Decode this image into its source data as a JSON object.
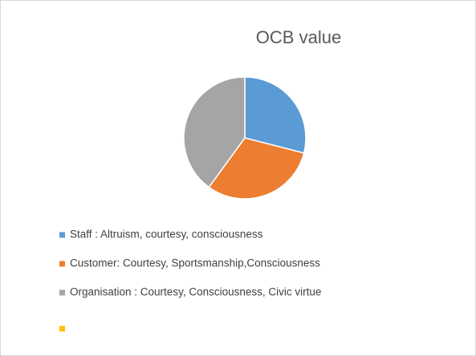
{
  "chart_data": {
    "type": "pie",
    "title": "OCB value",
    "categories": [
      "Staff : Altruism, courtesy, consciousness",
      "Customer: Courtesy, Sportsmanship,Consciousness",
      "Organisation : Courtesy, Consciousness, Civic virtue",
      null
    ],
    "values": [
      29,
      31,
      40,
      0
    ],
    "colors": [
      "#5b9bd5",
      "#ed7d31",
      "#a5a5a5",
      "#ffc000"
    ]
  }
}
